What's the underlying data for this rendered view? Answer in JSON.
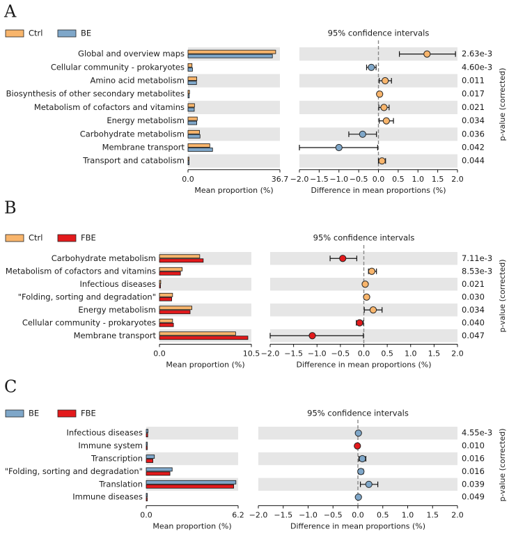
{
  "figure": {
    "pvalue_axis_label": "p-value (corrected)",
    "mean_axis_label": "Mean proportion (%)",
    "diff_axis_label": "Difference in mean proportions (%)",
    "ci_title": "95% confidence intervals"
  },
  "colors": {
    "Ctrl": "#f8b56c",
    "BE": "#7fa7c9",
    "FBE": "#e31a1c",
    "stripe": "#e6e6e6",
    "dashed": "#888888"
  },
  "chart_data": [
    {
      "type": "bar",
      "panel": "A",
      "groups": [
        "Ctrl",
        "BE"
      ],
      "categories": [
        "Global and overview maps",
        "Cellular community - prokaryotes",
        "Amino acid metabolism",
        "Biosynthesis of other secondary metabolites",
        "Metabolism of cofactors and vitamins",
        "Energy metabolism",
        "Carbohydrate metabolism",
        "Membrane transport",
        "Transport and catabolism"
      ],
      "series": [
        {
          "name": "Ctrl",
          "values": [
            35.0,
            1.6,
            3.5,
            0.6,
            2.6,
            3.7,
            4.6,
            8.7,
            0.4
          ]
        },
        {
          "name": "BE",
          "values": [
            33.7,
            1.8,
            3.4,
            0.5,
            2.5,
            3.5,
            4.8,
            9.8,
            0.3
          ]
        }
      ],
      "mean_ticks": [
        "0.0",
        "36.7"
      ],
      "mean_max": 36.7,
      "diff": [
        1.23,
        -0.18,
        0.17,
        0.03,
        0.14,
        0.2,
        -0.4,
        -1.0,
        0.09
      ],
      "ci_low": [
        0.53,
        -0.3,
        0.02,
        -0.02,
        0.01,
        0.02,
        -0.75,
        -2.0,
        0.0
      ],
      "ci_high": [
        1.95,
        -0.06,
        0.33,
        0.08,
        0.27,
        0.38,
        -0.05,
        -0.02,
        0.18
      ],
      "winner": [
        "Ctrl",
        "BE",
        "Ctrl",
        "Ctrl",
        "Ctrl",
        "Ctrl",
        "BE",
        "BE",
        "Ctrl"
      ],
      "pvalues": [
        "2.63e-3",
        "4.60e-3",
        "0.011",
        "0.017",
        "0.021",
        "0.034",
        "0.036",
        "0.042",
        "0.044"
      ],
      "diff_ticks": [
        "−2.0",
        "−1.5",
        "−1.0",
        "−0.5",
        "0.0",
        "0.5",
        "1.0",
        "1.5",
        "2.0"
      ],
      "xlim_diff": [
        -2.0,
        2.0
      ]
    },
    {
      "type": "bar",
      "panel": "B",
      "groups": [
        "Ctrl",
        "FBE"
      ],
      "categories": [
        "Carbohydrate metabolism",
        "Metabolism of cofactors and vitamins",
        "Infectious diseases",
        "\"Folding, sorting and degradation\"",
        "Energy metabolism",
        "Cellular community - prokaryotes",
        "Membrane transport"
      ],
      "series": [
        {
          "name": "Ctrl",
          "values": [
            4.6,
            2.6,
            0.15,
            1.5,
            3.7,
            1.5,
            8.7
          ]
        },
        {
          "name": "FBE",
          "values": [
            5.0,
            2.4,
            0.1,
            1.4,
            3.5,
            1.6,
            10.1
          ]
        }
      ],
      "mean_ticks": [
        "0.0",
        "10.5"
      ],
      "mean_max": 10.5,
      "diff": [
        -0.45,
        0.17,
        0.03,
        0.06,
        0.2,
        -0.09,
        -1.1
      ],
      "ci_low": [
        -0.72,
        0.1,
        0.02,
        0.01,
        0.01,
        -0.16,
        -2.0
      ],
      "ci_high": [
        -0.15,
        0.27,
        0.04,
        0.09,
        0.39,
        -0.01,
        -0.01
      ],
      "winner": [
        "FBE",
        "Ctrl",
        "Ctrl",
        "Ctrl",
        "Ctrl",
        "FBE",
        "FBE"
      ],
      "pvalues": [
        "7.11e-3",
        "8.53e-3",
        "0.021",
        "0.030",
        "0.034",
        "0.040",
        "0.047"
      ],
      "diff_ticks": [
        "−2.0",
        "−1.5",
        "−1.0",
        "−0.5",
        "0.0",
        "0.5",
        "1.0",
        "1.5",
        "2.0"
      ],
      "xlim_diff": [
        -2.0,
        2.0
      ]
    },
    {
      "type": "bar",
      "panel": "C",
      "groups": [
        "BE",
        "FBE"
      ],
      "categories": [
        "Infectious diseases",
        "Immune system",
        "Transcription",
        "\"Folding, sorting and degradation\"",
        "Translation",
        "Immune diseases"
      ],
      "series": [
        {
          "name": "BE",
          "values": [
            0.12,
            0.05,
            0.55,
            1.75,
            6.05,
            0.06
          ]
        },
        {
          "name": "FBE",
          "values": [
            0.1,
            0.04,
            0.45,
            1.6,
            5.9,
            0.05
          ]
        }
      ],
      "mean_ticks": [
        "0.0",
        "6.2"
      ],
      "mean_max": 6.2,
      "diff": [
        0.01,
        -0.01,
        0.09,
        0.06,
        0.22,
        0.01
      ],
      "ci_low": [
        0.0,
        -0.02,
        0.02,
        0.01,
        0.05,
        0.0
      ],
      "ci_high": [
        0.02,
        0.0,
        0.16,
        0.11,
        0.4,
        0.02
      ],
      "winner": [
        "BE",
        "FBE",
        "BE",
        "BE",
        "BE",
        "BE"
      ],
      "pvalues": [
        "4.55e-3",
        "0.010",
        "0.016",
        "0.016",
        "0.039",
        "0.049"
      ],
      "diff_ticks": [
        "−2.0",
        "−1.5",
        "−1.0",
        "−0.5",
        "0.0",
        "0.5",
        "1.0",
        "1.5",
        "2.0"
      ],
      "xlim_diff": [
        -2.0,
        2.0
      ]
    }
  ]
}
